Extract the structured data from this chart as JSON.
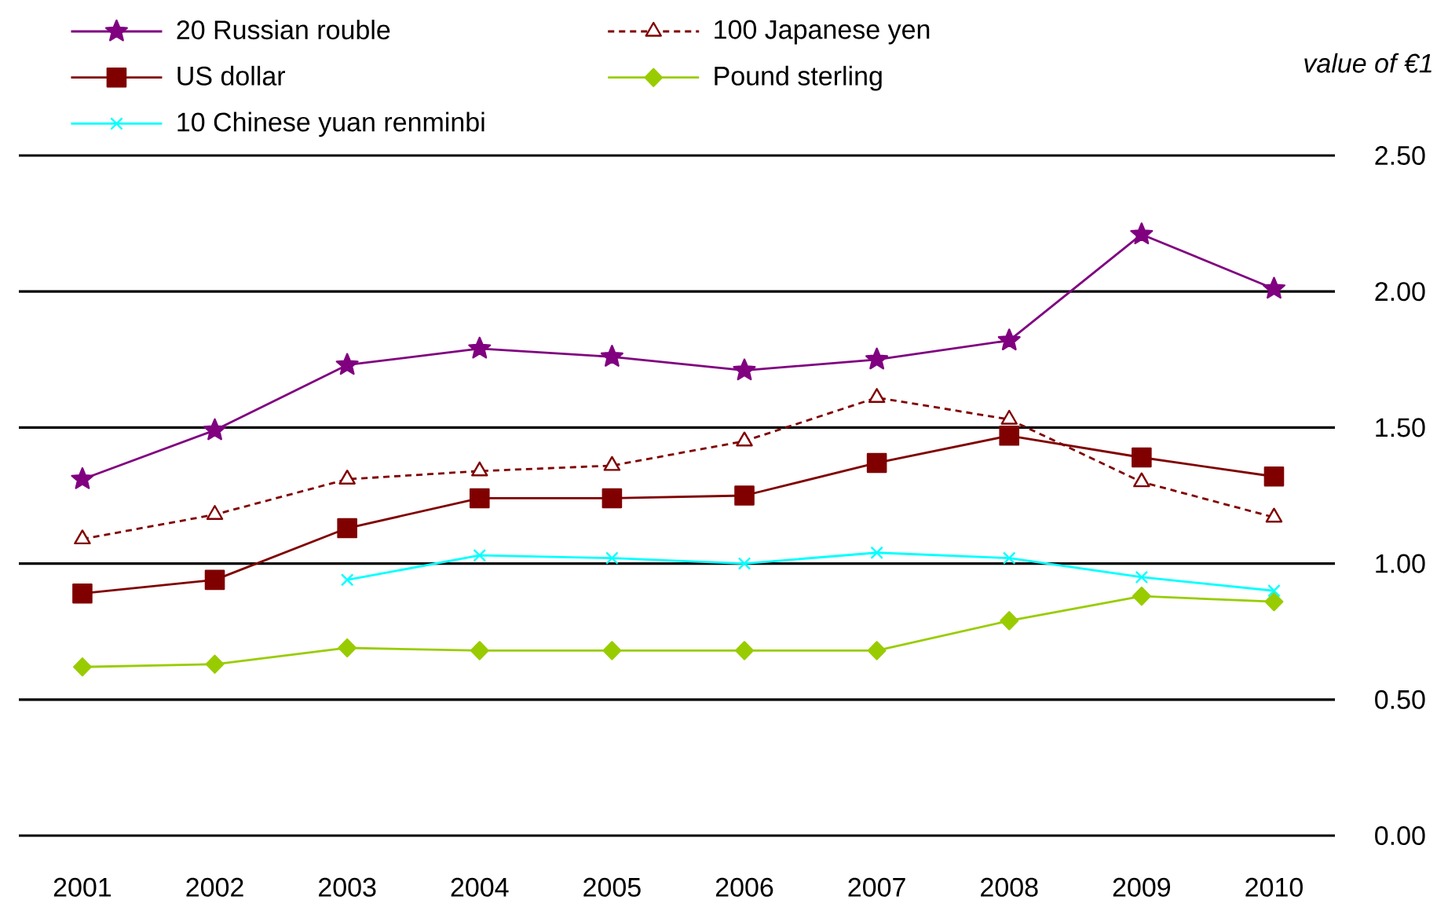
{
  "chart_data": {
    "type": "line",
    "ylabel": "value of €1",
    "categories": [
      "2001",
      "2002",
      "2003",
      "2004",
      "2005",
      "2006",
      "2007",
      "2008",
      "2009",
      "2010"
    ],
    "series": [
      {
        "name": "20 Russian rouble",
        "color": "#800080",
        "marker": "star",
        "values": [
          1.31,
          1.49,
          1.73,
          1.79,
          1.76,
          1.71,
          1.75,
          1.82,
          2.21,
          2.01
        ]
      },
      {
        "name": "100 Japanese yen",
        "color": "#800000",
        "marker": "triangle",
        "line_style": "dashed",
        "values": [
          1.09,
          1.18,
          1.31,
          1.34,
          1.36,
          1.45,
          1.61,
          1.53,
          1.3,
          1.17
        ]
      },
      {
        "name": "US dollar",
        "color": "#800000",
        "marker": "square",
        "values": [
          0.89,
          0.94,
          1.13,
          1.24,
          1.24,
          1.25,
          1.37,
          1.47,
          1.39,
          1.32
        ]
      },
      {
        "name": "Pound sterling",
        "color": "#99cc00",
        "marker": "diamond",
        "values": [
          0.62,
          0.63,
          0.69,
          0.68,
          0.68,
          0.68,
          0.68,
          0.79,
          0.88,
          0.86
        ]
      },
      {
        "name": "10 Chinese yuan renminbi",
        "color": "#00ffff",
        "marker": "cross",
        "values": [
          null,
          null,
          0.94,
          1.03,
          1.02,
          1.0,
          1.04,
          1.02,
          0.95,
          0.9
        ]
      }
    ],
    "ylim": [
      0,
      2.5
    ],
    "yticks": [
      {
        "value": 0,
        "label": "0.00"
      },
      {
        "value": 0.5,
        "label": "0.50"
      },
      {
        "value": 1,
        "label": "1.00"
      },
      {
        "value": 1.5,
        "label": "1.50"
      },
      {
        "value": 2,
        "label": "2.00"
      },
      {
        "value": 2.5,
        "label": "2.50"
      }
    ],
    "grid": "y",
    "legend": "top"
  }
}
